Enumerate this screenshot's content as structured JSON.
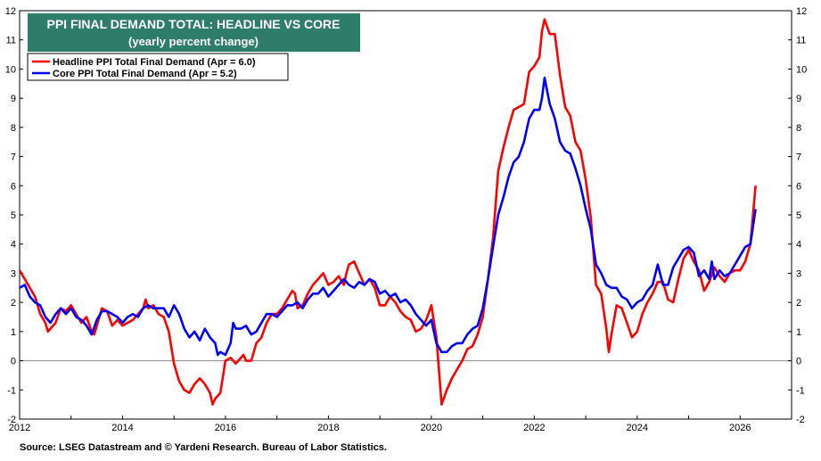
{
  "chart_data": {
    "type": "line",
    "title": "PPI FINAL DEMAND TOTAL: HEADLINE VS CORE",
    "subtitle": "(yearly percent change)",
    "ylim": [
      -2,
      12
    ],
    "xlim": [
      2012,
      2027
    ],
    "y_ticks": [
      "-2",
      "-1",
      "0",
      "1",
      "2",
      "3",
      "4",
      "5",
      "6",
      "7",
      "8",
      "9",
      "10",
      "11",
      "12"
    ],
    "x_ticks": [
      "2012",
      "2014",
      "2016",
      "2018",
      "2020",
      "2022",
      "2024",
      "2026"
    ],
    "grid": false,
    "legend_position": "top-left",
    "zero_line": true,
    "colors": {
      "title_bg": "#2e7d6b",
      "headline": "#ff0000",
      "core": "#0000ff"
    },
    "series": [
      {
        "name": "Headline PPI Total Final Demand (Apr = 6.0)",
        "color": "#ff0000",
        "points": [
          [
            2012.0,
            3.1
          ],
          [
            2012.1,
            2.8
          ],
          [
            2012.3,
            2.2
          ],
          [
            2012.4,
            1.6
          ],
          [
            2012.5,
            1.3
          ],
          [
            2012.55,
            1.0
          ],
          [
            2012.7,
            1.3
          ],
          [
            2012.8,
            1.8
          ],
          [
            2012.9,
            1.7
          ],
          [
            2013.0,
            1.9
          ],
          [
            2013.1,
            1.6
          ],
          [
            2013.2,
            1.3
          ],
          [
            2013.3,
            1.5
          ],
          [
            2013.4,
            1.0
          ],
          [
            2013.45,
            0.9
          ],
          [
            2013.5,
            1.2
          ],
          [
            2013.6,
            1.8
          ],
          [
            2013.7,
            1.7
          ],
          [
            2013.8,
            1.2
          ],
          [
            2013.9,
            1.4
          ],
          [
            2014.0,
            1.2
          ],
          [
            2014.1,
            1.3
          ],
          [
            2014.2,
            1.4
          ],
          [
            2014.3,
            1.6
          ],
          [
            2014.4,
            1.8
          ],
          [
            2014.45,
            2.1
          ],
          [
            2014.5,
            1.8
          ],
          [
            2014.6,
            1.9
          ],
          [
            2014.7,
            1.6
          ],
          [
            2014.8,
            1.5
          ],
          [
            2014.9,
            1.0
          ],
          [
            2015.0,
            -0.1
          ],
          [
            2015.1,
            -0.7
          ],
          [
            2015.2,
            -1.0
          ],
          [
            2015.3,
            -1.1
          ],
          [
            2015.4,
            -0.8
          ],
          [
            2015.5,
            -0.6
          ],
          [
            2015.6,
            -0.8
          ],
          [
            2015.7,
            -1.1
          ],
          [
            2015.75,
            -1.5
          ],
          [
            2015.8,
            -1.3
          ],
          [
            2015.9,
            -1.1
          ],
          [
            2016.0,
            0.0
          ],
          [
            2016.1,
            0.1
          ],
          [
            2016.2,
            -0.1
          ],
          [
            2016.3,
            0.1
          ],
          [
            2016.35,
            0.2
          ],
          [
            2016.4,
            0.0
          ],
          [
            2016.5,
            0.0
          ],
          [
            2016.6,
            0.6
          ],
          [
            2016.7,
            0.8
          ],
          [
            2016.8,
            1.3
          ],
          [
            2016.9,
            1.6
          ],
          [
            2017.0,
            1.6
          ],
          [
            2017.1,
            1.8
          ],
          [
            2017.2,
            2.1
          ],
          [
            2017.3,
            2.4
          ],
          [
            2017.35,
            2.3
          ],
          [
            2017.4,
            1.8
          ],
          [
            2017.5,
            1.9
          ],
          [
            2017.6,
            2.3
          ],
          [
            2017.7,
            2.6
          ],
          [
            2017.8,
            2.8
          ],
          [
            2017.9,
            3.0
          ],
          [
            2018.0,
            2.6
          ],
          [
            2018.1,
            2.7
          ],
          [
            2018.2,
            2.9
          ],
          [
            2018.3,
            2.6
          ],
          [
            2018.35,
            3.0
          ],
          [
            2018.4,
            3.3
          ],
          [
            2018.5,
            3.4
          ],
          [
            2018.6,
            3.0
          ],
          [
            2018.7,
            2.6
          ],
          [
            2018.8,
            2.8
          ],
          [
            2018.9,
            2.5
          ],
          [
            2019.0,
            1.9
          ],
          [
            2019.1,
            1.9
          ],
          [
            2019.2,
            2.2
          ],
          [
            2019.3,
            2.0
          ],
          [
            2019.4,
            1.7
          ],
          [
            2019.5,
            1.5
          ],
          [
            2019.6,
            1.4
          ],
          [
            2019.7,
            1.0
          ],
          [
            2019.8,
            1.1
          ],
          [
            2019.9,
            1.4
          ],
          [
            2020.0,
            1.9
          ],
          [
            2020.1,
            0.8
          ],
          [
            2020.2,
            -1.5
          ],
          [
            2020.3,
            -1.0
          ],
          [
            2020.4,
            -0.6
          ],
          [
            2020.5,
            -0.3
          ],
          [
            2020.6,
            0.0
          ],
          [
            2020.7,
            0.4
          ],
          [
            2020.8,
            0.5
          ],
          [
            2020.9,
            0.9
          ],
          [
            2021.0,
            1.5
          ],
          [
            2021.1,
            2.8
          ],
          [
            2021.2,
            4.2
          ],
          [
            2021.3,
            6.5
          ],
          [
            2021.4,
            7.3
          ],
          [
            2021.5,
            8.0
          ],
          [
            2021.6,
            8.6
          ],
          [
            2021.7,
            8.7
          ],
          [
            2021.8,
            8.8
          ],
          [
            2021.9,
            9.9
          ],
          [
            2022.0,
            10.1
          ],
          [
            2022.1,
            10.4
          ],
          [
            2022.15,
            11.3
          ],
          [
            2022.2,
            11.7
          ],
          [
            2022.3,
            11.2
          ],
          [
            2022.4,
            11.2
          ],
          [
            2022.5,
            9.8
          ],
          [
            2022.6,
            8.7
          ],
          [
            2022.7,
            8.4
          ],
          [
            2022.8,
            7.5
          ],
          [
            2022.9,
            7.2
          ],
          [
            2023.0,
            6.2
          ],
          [
            2023.1,
            4.9
          ],
          [
            2023.2,
            2.6
          ],
          [
            2023.3,
            2.3
          ],
          [
            2023.4,
            1.1
          ],
          [
            2023.45,
            0.3
          ],
          [
            2023.5,
            0.9
          ],
          [
            2023.6,
            1.9
          ],
          [
            2023.7,
            1.8
          ],
          [
            2023.8,
            1.3
          ],
          [
            2023.9,
            0.8
          ],
          [
            2024.0,
            1.0
          ],
          [
            2024.1,
            1.6
          ],
          [
            2024.2,
            2.0
          ],
          [
            2024.3,
            2.3
          ],
          [
            2024.4,
            2.7
          ],
          [
            2024.5,
            2.7
          ],
          [
            2024.6,
            2.1
          ],
          [
            2024.7,
            2.0
          ],
          [
            2024.8,
            2.8
          ],
          [
            2024.9,
            3.5
          ],
          [
            2025.0,
            3.8
          ],
          [
            2025.1,
            3.4
          ],
          [
            2025.2,
            3.1
          ],
          [
            2025.3,
            2.4
          ],
          [
            2025.4,
            2.7
          ],
          [
            2025.5,
            3.2
          ],
          [
            2025.6,
            2.9
          ],
          [
            2025.7,
            2.7
          ],
          [
            2025.8,
            3.0
          ],
          [
            2025.9,
            3.1
          ],
          [
            2026.0,
            3.1
          ],
          [
            2026.1,
            3.4
          ],
          [
            2026.2,
            4.0
          ],
          [
            2026.3,
            6.0
          ]
        ]
      },
      {
        "name": "Core PPI Total Final Demand (Apr = 5.2)",
        "color": "#0000ff",
        "points": [
          [
            2012.0,
            2.5
          ],
          [
            2012.1,
            2.6
          ],
          [
            2012.2,
            2.2
          ],
          [
            2012.3,
            2.0
          ],
          [
            2012.4,
            1.9
          ],
          [
            2012.5,
            1.5
          ],
          [
            2012.6,
            1.3
          ],
          [
            2012.7,
            1.6
          ],
          [
            2012.8,
            1.8
          ],
          [
            2012.9,
            1.6
          ],
          [
            2013.0,
            1.8
          ],
          [
            2013.1,
            1.5
          ],
          [
            2013.2,
            1.4
          ],
          [
            2013.3,
            1.2
          ],
          [
            2013.4,
            0.9
          ],
          [
            2013.5,
            1.4
          ],
          [
            2013.6,
            1.7
          ],
          [
            2013.7,
            1.7
          ],
          [
            2013.8,
            1.6
          ],
          [
            2013.9,
            1.5
          ],
          [
            2014.0,
            1.3
          ],
          [
            2014.1,
            1.5
          ],
          [
            2014.2,
            1.6
          ],
          [
            2014.3,
            1.5
          ],
          [
            2014.4,
            1.8
          ],
          [
            2014.5,
            1.9
          ],
          [
            2014.6,
            1.8
          ],
          [
            2014.7,
            1.8
          ],
          [
            2014.8,
            1.8
          ],
          [
            2014.9,
            1.5
          ],
          [
            2015.0,
            1.9
          ],
          [
            2015.1,
            1.6
          ],
          [
            2015.2,
            1.1
          ],
          [
            2015.3,
            0.8
          ],
          [
            2015.4,
            1.0
          ],
          [
            2015.5,
            0.7
          ],
          [
            2015.6,
            1.1
          ],
          [
            2015.7,
            0.8
          ],
          [
            2015.8,
            0.6
          ],
          [
            2015.85,
            0.2
          ],
          [
            2015.9,
            0.3
          ],
          [
            2016.0,
            0.2
          ],
          [
            2016.1,
            0.6
          ],
          [
            2016.15,
            1.3
          ],
          [
            2016.2,
            1.1
          ],
          [
            2016.3,
            1.1
          ],
          [
            2016.4,
            1.2
          ],
          [
            2016.5,
            0.9
          ],
          [
            2016.6,
            1.0
          ],
          [
            2016.7,
            1.3
          ],
          [
            2016.8,
            1.6
          ],
          [
            2016.9,
            1.6
          ],
          [
            2017.0,
            1.5
          ],
          [
            2017.1,
            1.7
          ],
          [
            2017.2,
            1.9
          ],
          [
            2017.3,
            1.9
          ],
          [
            2017.4,
            2.0
          ],
          [
            2017.5,
            1.8
          ],
          [
            2017.6,
            2.1
          ],
          [
            2017.7,
            2.3
          ],
          [
            2017.8,
            2.3
          ],
          [
            2017.9,
            2.5
          ],
          [
            2018.0,
            2.2
          ],
          [
            2018.1,
            2.4
          ],
          [
            2018.2,
            2.6
          ],
          [
            2018.3,
            2.8
          ],
          [
            2018.4,
            2.6
          ],
          [
            2018.5,
            2.5
          ],
          [
            2018.6,
            2.7
          ],
          [
            2018.7,
            2.6
          ],
          [
            2018.8,
            2.8
          ],
          [
            2018.9,
            2.7
          ],
          [
            2019.0,
            2.3
          ],
          [
            2019.1,
            2.4
          ],
          [
            2019.2,
            2.2
          ],
          [
            2019.3,
            2.3
          ],
          [
            2019.4,
            2.0
          ],
          [
            2019.5,
            2.1
          ],
          [
            2019.6,
            1.9
          ],
          [
            2019.7,
            1.6
          ],
          [
            2019.8,
            1.4
          ],
          [
            2019.9,
            1.2
          ],
          [
            2020.0,
            1.4
          ],
          [
            2020.1,
            0.6
          ],
          [
            2020.2,
            0.3
          ],
          [
            2020.3,
            0.3
          ],
          [
            2020.4,
            0.5
          ],
          [
            2020.5,
            0.6
          ],
          [
            2020.6,
            0.6
          ],
          [
            2020.7,
            0.9
          ],
          [
            2020.8,
            1.1
          ],
          [
            2020.9,
            1.2
          ],
          [
            2021.0,
            1.8
          ],
          [
            2021.1,
            2.8
          ],
          [
            2021.2,
            3.9
          ],
          [
            2021.3,
            5.0
          ],
          [
            2021.4,
            5.6
          ],
          [
            2021.5,
            6.3
          ],
          [
            2021.6,
            6.8
          ],
          [
            2021.7,
            7.0
          ],
          [
            2021.8,
            7.5
          ],
          [
            2021.9,
            8.3
          ],
          [
            2022.0,
            8.6
          ],
          [
            2022.1,
            8.6
          ],
          [
            2022.15,
            9.0
          ],
          [
            2022.2,
            9.7
          ],
          [
            2022.3,
            8.8
          ],
          [
            2022.4,
            8.3
          ],
          [
            2022.5,
            7.5
          ],
          [
            2022.6,
            7.2
          ],
          [
            2022.7,
            7.1
          ],
          [
            2022.8,
            6.6
          ],
          [
            2022.9,
            6.0
          ],
          [
            2023.0,
            5.2
          ],
          [
            2023.1,
            4.5
          ],
          [
            2023.2,
            3.3
          ],
          [
            2023.3,
            3.0
          ],
          [
            2023.4,
            2.6
          ],
          [
            2023.5,
            2.5
          ],
          [
            2023.6,
            2.5
          ],
          [
            2023.7,
            2.2
          ],
          [
            2023.8,
            2.1
          ],
          [
            2023.9,
            1.8
          ],
          [
            2024.0,
            2.0
          ],
          [
            2024.1,
            2.1
          ],
          [
            2024.2,
            2.4
          ],
          [
            2024.3,
            2.6
          ],
          [
            2024.4,
            3.3
          ],
          [
            2024.5,
            2.6
          ],
          [
            2024.6,
            2.6
          ],
          [
            2024.7,
            3.2
          ],
          [
            2024.8,
            3.5
          ],
          [
            2024.9,
            3.8
          ],
          [
            2025.0,
            3.9
          ],
          [
            2025.1,
            3.7
          ],
          [
            2025.2,
            2.9
          ],
          [
            2025.3,
            3.1
          ],
          [
            2025.4,
            2.8
          ],
          [
            2025.45,
            3.4
          ],
          [
            2025.5,
            2.8
          ],
          [
            2025.6,
            3.1
          ],
          [
            2025.7,
            2.9
          ],
          [
            2025.8,
            3.0
          ],
          [
            2025.9,
            3.3
          ],
          [
            2026.0,
            3.6
          ],
          [
            2026.1,
            3.9
          ],
          [
            2026.2,
            4.0
          ],
          [
            2026.3,
            5.2
          ]
        ]
      }
    ]
  },
  "source": "Source: LSEG Datastream and © Yardeni Research. Bureau of Labor Statistics."
}
